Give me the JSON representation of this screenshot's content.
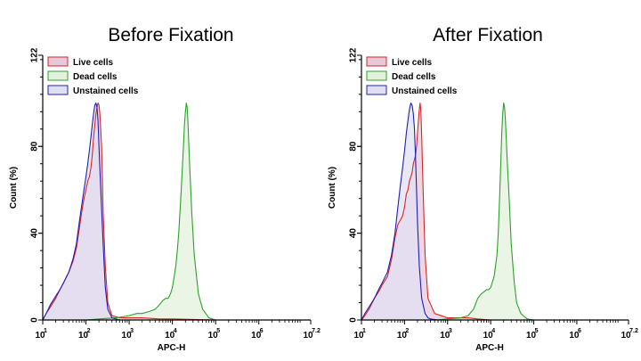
{
  "chart_data": [
    {
      "type": "area",
      "title": "Before Fixation",
      "xlabel": "APC-H",
      "ylabel": "Count (%)",
      "xscale": "log",
      "xlim": [
        10,
        15848932
      ],
      "ylim": [
        0,
        122
      ],
      "yticks": [
        0,
        40,
        80,
        122
      ],
      "xticks": [
        {
          "base": "10",
          "exp": "1",
          "value": 10
        },
        {
          "base": "10",
          "exp": "2",
          "value": 100
        },
        {
          "base": "10",
          "exp": "3",
          "value": 1000
        },
        {
          "base": "10",
          "exp": "4",
          "value": 10000
        },
        {
          "base": "10",
          "exp": "5",
          "value": 100000
        },
        {
          "base": "10",
          "exp": "6",
          "value": 1000000
        },
        {
          "base": "10",
          "exp": "7.2",
          "value": 15848932
        }
      ],
      "legend_position": "top-left",
      "series": [
        {
          "name": "Live cells",
          "stroke": "#d62728",
          "fill": "#e8c8d8",
          "x": [
            10,
            12,
            15,
            20,
            25,
            30,
            40,
            50,
            60,
            70,
            80,
            90,
            100,
            110,
            120,
            130,
            140,
            150,
            160,
            170,
            180,
            190,
            200,
            210,
            230,
            250,
            280,
            320,
            400,
            600,
            1000,
            2000,
            5000,
            10000,
            100000,
            15848932
          ],
          "y": [
            0,
            3,
            6,
            10,
            14,
            17,
            22,
            27,
            33,
            42,
            50,
            56,
            60,
            64,
            66,
            70,
            76,
            84,
            90,
            95,
            98,
            100,
            99,
            95,
            80,
            50,
            25,
            8,
            2,
            1,
            1,
            1,
            0.5,
            0.5,
            0,
            0
          ]
        },
        {
          "name": "Dead cells",
          "stroke": "#2ca02c",
          "fill": "#e3f2dd",
          "x": [
            10,
            100,
            200,
            500,
            1000,
            1500,
            2000,
            3000,
            4000,
            5000,
            6000,
            7000,
            8000,
            9000,
            10000,
            11000,
            12000,
            13000,
            14000,
            15000,
            16000,
            17000,
            18000,
            19000,
            20000,
            21000,
            22000,
            23000,
            25000,
            28000,
            32000,
            40000,
            50000,
            70000,
            100000,
            15848932
          ],
          "y": [
            0,
            0,
            0.5,
            1,
            2,
            3,
            3,
            4,
            5,
            7,
            9,
            10,
            10,
            12,
            15,
            20,
            25,
            32,
            40,
            50,
            60,
            70,
            80,
            90,
            96,
            100,
            98,
            90,
            72,
            50,
            30,
            12,
            5,
            1,
            0,
            0
          ]
        },
        {
          "name": "Unstained cells",
          "stroke": "#1f1fb4",
          "fill": "#e0e0f4",
          "x": [
            10,
            12,
            15,
            20,
            25,
            30,
            40,
            50,
            60,
            70,
            80,
            90,
            100,
            110,
            120,
            130,
            140,
            150,
            160,
            170,
            180,
            190,
            200,
            220,
            250,
            280,
            320,
            400,
            600,
            15848932
          ],
          "y": [
            0,
            3,
            7,
            11,
            14,
            17,
            22,
            28,
            35,
            45,
            53,
            60,
            66,
            72,
            78,
            84,
            90,
            95,
            99,
            100,
            98,
            92,
            80,
            60,
            35,
            15,
            5,
            1,
            0,
            0
          ]
        }
      ]
    },
    {
      "type": "area",
      "title": "After Fixation",
      "xlabel": "APC-H",
      "ylabel": "Count (%)",
      "xscale": "log",
      "xlim": [
        10,
        15848932
      ],
      "ylim": [
        0,
        122
      ],
      "yticks": [
        0,
        40,
        80,
        122
      ],
      "xticks": [
        {
          "base": "10",
          "exp": "1",
          "value": 10
        },
        {
          "base": "10",
          "exp": "2",
          "value": 100
        },
        {
          "base": "10",
          "exp": "3",
          "value": 1000
        },
        {
          "base": "10",
          "exp": "4",
          "value": 10000
        },
        {
          "base": "10",
          "exp": "5",
          "value": 100000
        },
        {
          "base": "10",
          "exp": "6",
          "value": 1000000
        },
        {
          "base": "10",
          "exp": "7.2",
          "value": 15848932
        }
      ],
      "legend_position": "top-left",
      "series": [
        {
          "name": "Live cells",
          "stroke": "#d62728",
          "fill": "#e8c8d8",
          "x": [
            10,
            12,
            15,
            20,
            25,
            30,
            40,
            50,
            60,
            70,
            80,
            90,
            100,
            110,
            120,
            130,
            140,
            150,
            160,
            170,
            180,
            190,
            200,
            210,
            220,
            230,
            240,
            250,
            270,
            300,
            350,
            500,
            1000,
            2000,
            3000,
            5000,
            10000,
            15848932
          ],
          "y": [
            0,
            2,
            5,
            10,
            13,
            16,
            20,
            28,
            38,
            44,
            46,
            48,
            52,
            58,
            60,
            64,
            66,
            68,
            72,
            74,
            76,
            80,
            86,
            92,
            97,
            100,
            96,
            85,
            60,
            30,
            10,
            3,
            1,
            1,
            1,
            0.5,
            0,
            0
          ]
        },
        {
          "name": "Dead cells",
          "stroke": "#2ca02c",
          "fill": "#e3f2dd",
          "x": [
            10,
            500,
            1000,
            2000,
            3000,
            4000,
            5000,
            6000,
            7000,
            8000,
            9000,
            10000,
            12000,
            14000,
            15000,
            16000,
            17000,
            18000,
            19000,
            20000,
            21000,
            22000,
            24000,
            27000,
            30000,
            35000,
            40000,
            50000,
            70000,
            100000,
            15848932
          ],
          "y": [
            0,
            0,
            0.5,
            1,
            2,
            5,
            10,
            12,
            13,
            14,
            14,
            15,
            20,
            30,
            40,
            55,
            70,
            85,
            95,
            100,
            98,
            92,
            75,
            55,
            35,
            18,
            8,
            3,
            0.5,
            0,
            0
          ]
        },
        {
          "name": "Unstained cells",
          "stroke": "#1f1fb4",
          "fill": "#e0e0f4",
          "x": [
            10,
            12,
            15,
            20,
            25,
            30,
            40,
            50,
            60,
            70,
            80,
            90,
            100,
            110,
            120,
            130,
            140,
            150,
            160,
            170,
            180,
            190,
            200,
            220,
            250,
            300,
            350,
            400,
            600,
            15848932
          ],
          "y": [
            0,
            3,
            6,
            10,
            14,
            17,
            22,
            30,
            40,
            52,
            62,
            70,
            78,
            86,
            92,
            97,
            100,
            99,
            95,
            88,
            75,
            60,
            45,
            25,
            10,
            3,
            1,
            0.5,
            0,
            0
          ]
        }
      ]
    }
  ]
}
